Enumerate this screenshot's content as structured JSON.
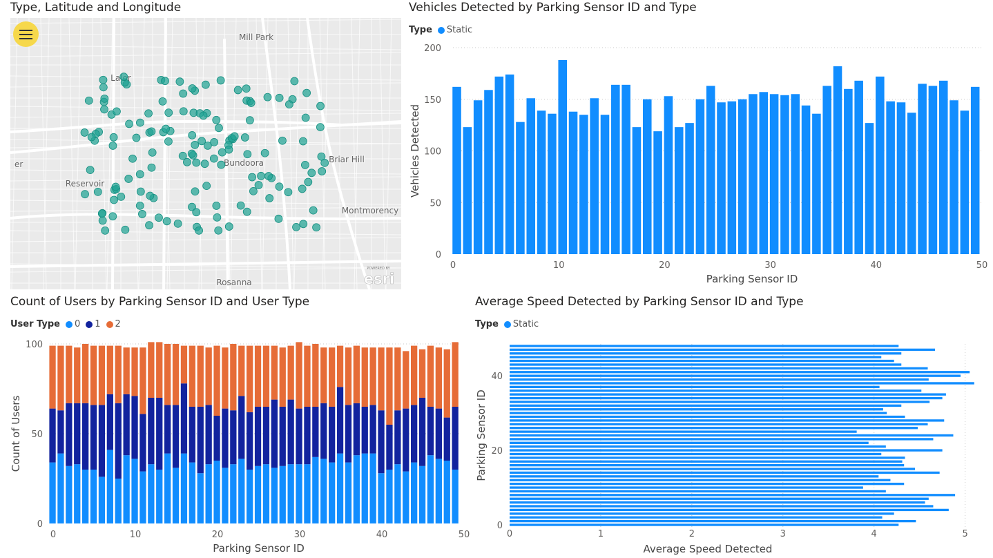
{
  "map": {
    "title": "Type, Latitude and Longitude",
    "menu_icon": "hamburger-menu-icon",
    "place_labels": [
      "Mill Park",
      "Lalor",
      "Bundoora",
      "Briar Hill",
      "Reservoir",
      "Montmorency",
      "Rosanna",
      "er"
    ],
    "attribution": {
      "line1": "POWERED BY",
      "line2": "esri"
    },
    "point_color": "#21a494",
    "point_count": 146
  },
  "vehicles_chart": {
    "title": "Vehicles Detected by Parking Sensor ID and Type",
    "legend_title": "Type",
    "chart_data": {
      "type": "bar",
      "series": [
        {
          "name": "Static",
          "color": "#118dff",
          "x": [
            0,
            1,
            2,
            3,
            4,
            5,
            6,
            7,
            8,
            9,
            10,
            11,
            12,
            13,
            14,
            15,
            16,
            17,
            18,
            19,
            20,
            21,
            22,
            23,
            24,
            25,
            26,
            27,
            28,
            29,
            30,
            31,
            32,
            33,
            34,
            35,
            36,
            37,
            38,
            39,
            40,
            41,
            42,
            43,
            44,
            45,
            46,
            47,
            48,
            49
          ],
          "values": [
            162,
            123,
            149,
            159,
            172,
            174,
            128,
            151,
            139,
            136,
            188,
            138,
            135,
            151,
            135,
            164,
            164,
            123,
            150,
            119,
            153,
            123,
            127,
            150,
            163,
            147,
            148,
            150,
            155,
            157,
            155,
            154,
            155,
            144,
            136,
            163,
            182,
            160,
            168,
            127,
            172,
            148,
            147,
            137,
            165,
            163,
            168,
            149,
            139,
            162
          ]
        }
      ],
      "xlabel": "Parking Sensor ID",
      "ylabel": "Vehicles Detected",
      "xlim": [
        0,
        50
      ],
      "ylim": [
        0,
        200
      ],
      "xticks": [
        0,
        10,
        20,
        30,
        40,
        50
      ],
      "yticks": [
        0,
        50,
        100,
        150,
        200
      ],
      "grid": true,
      "legend_position": "top-left"
    }
  },
  "users_chart": {
    "title": "Count of Users by Parking Sensor ID and User Type",
    "legend_title": "User Type",
    "chart_data": {
      "type": "bar",
      "stacked": true,
      "x": [
        0,
        1,
        2,
        3,
        4,
        5,
        6,
        7,
        8,
        9,
        10,
        11,
        12,
        13,
        14,
        15,
        16,
        17,
        18,
        19,
        20,
        21,
        22,
        23,
        24,
        25,
        26,
        27,
        28,
        29,
        30,
        31,
        32,
        33,
        34,
        35,
        36,
        37,
        38,
        39,
        40,
        41,
        42,
        43,
        44,
        45,
        46,
        47,
        48,
        49
      ],
      "series": [
        {
          "name": "0",
          "color": "#118dff",
          "values": [
            34,
            39,
            32,
            33,
            30,
            30,
            26,
            41,
            25,
            38,
            36,
            29,
            33,
            30,
            39,
            31,
            39,
            34,
            28,
            33,
            35,
            31,
            33,
            36,
            30,
            32,
            33,
            31,
            32,
            33,
            33,
            33,
            37,
            36,
            34,
            39,
            34,
            38,
            39,
            39,
            28,
            30,
            33,
            29,
            34,
            32,
            38,
            36,
            35,
            30
          ]
        },
        {
          "name": "1",
          "color": "#12239e",
          "values": [
            30,
            24,
            35,
            34,
            37,
            36,
            40,
            31,
            42,
            34,
            35,
            32,
            37,
            40,
            27,
            35,
            39,
            31,
            37,
            33,
            25,
            33,
            30,
            35,
            32,
            33,
            32,
            38,
            33,
            36,
            31,
            32,
            28,
            31,
            31,
            37,
            32,
            29,
            26,
            27,
            35,
            25,
            30,
            35,
            32,
            38,
            27,
            28,
            24,
            35
          ]
        },
        {
          "name": "2",
          "color": "#e66c37",
          "values": [
            35,
            36,
            32,
            31,
            33,
            33,
            33,
            27,
            32,
            26,
            27,
            37,
            31,
            31,
            34,
            34,
            21,
            34,
            34,
            32,
            39,
            34,
            37,
            28,
            37,
            34,
            34,
            30,
            33,
            30,
            37,
            34,
            35,
            31,
            33,
            23,
            32,
            32,
            33,
            32,
            35,
            43,
            35,
            32,
            33,
            27,
            34,
            34,
            38,
            36
          ]
        }
      ],
      "xlabel": "Parking Sensor ID",
      "ylabel": "Count of Users",
      "xlim": [
        0,
        50
      ],
      "ylim": [
        0,
        100
      ],
      "xticks": [
        0,
        10,
        20,
        30,
        40,
        50
      ],
      "yticks": [
        0,
        50,
        100
      ],
      "grid": true,
      "legend_position": "top-left"
    }
  },
  "speed_chart": {
    "title": "Average Speed Detected by Parking Sensor ID and Type",
    "legend_title": "Type",
    "chart_data": {
      "type": "bar",
      "orientation": "horizontal",
      "series": [
        {
          "name": "Static",
          "color": "#118dff",
          "y": [
            0,
            1,
            2,
            3,
            4,
            5,
            6,
            7,
            8,
            9,
            10,
            11,
            12,
            13,
            14,
            15,
            16,
            17,
            18,
            19,
            20,
            21,
            22,
            23,
            24,
            25,
            26,
            27,
            28,
            29,
            30,
            31,
            32,
            33,
            34,
            35,
            36,
            37,
            38,
            39,
            40,
            41,
            42,
            43,
            44,
            45,
            46,
            47,
            48
          ],
          "values": [
            4.27,
            4.46,
            4.09,
            4.22,
            4.82,
            4.65,
            4.56,
            4.6,
            4.89,
            4.13,
            3.88,
            4.33,
            4.18,
            4.05,
            4.72,
            4.45,
            4.33,
            4.31,
            4.34,
            4.08,
            4.75,
            4.13,
            3.94,
            4.65,
            4.87,
            3.81,
            4.48,
            4.59,
            4.77,
            4.34,
            4.14,
            4.1,
            4.3,
            4.61,
            4.75,
            4.79,
            4.52,
            4.06,
            5.1,
            4.6,
            4.95,
            5.05,
            4.59,
            4.3,
            4.22,
            4.08,
            4.3,
            4.67,
            4.27
          ]
        }
      ],
      "xlabel": "Average Speed Detected",
      "ylabel": "Parking Sensor ID",
      "xlim": [
        0,
        5.2
      ],
      "ylim": [
        0,
        48
      ],
      "xticks": [
        0,
        1,
        2,
        3,
        4,
        5
      ],
      "yticks": [
        0,
        20,
        40
      ],
      "grid": true,
      "legend_position": "top-left"
    }
  }
}
